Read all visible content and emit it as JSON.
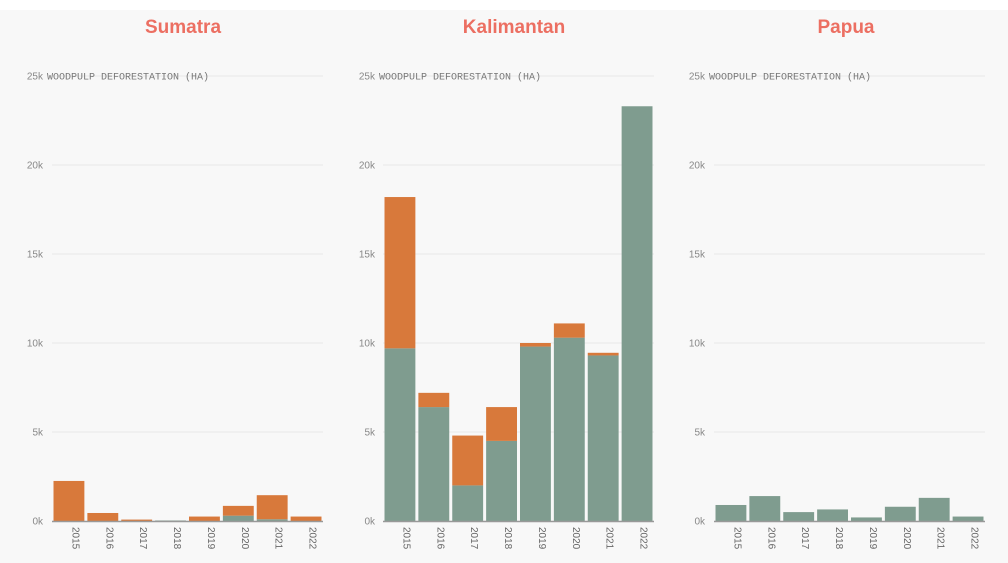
{
  "colors": {
    "title": "#ec6f62",
    "green": "#7f9c8f",
    "orange": "#d8793b",
    "grid": "#e8e8e8",
    "axis": "#999999"
  },
  "chart_data": [
    {
      "type": "bar",
      "stacked": true,
      "title": "Sumatra",
      "ylabel": "WOODPULP DEFORESTATION (HA)",
      "ylim": [
        0,
        25000
      ],
      "yticks": [
        0,
        5000,
        10000,
        15000,
        20000,
        25000
      ],
      "ytick_labels": [
        "0k",
        "5k",
        "10k",
        "15k",
        "20k",
        "25k"
      ],
      "categories": [
        "2015",
        "2016",
        "2017",
        "2018",
        "2019",
        "2020",
        "2021",
        "2022"
      ],
      "series": [
        {
          "color": "#7f9c8f",
          "values": [
            0,
            0,
            0,
            30,
            0,
            300,
            100,
            0
          ]
        },
        {
          "color": "#d8793b",
          "values": [
            2250,
            450,
            80,
            0,
            250,
            550,
            1350,
            250
          ]
        }
      ]
    },
    {
      "type": "bar",
      "stacked": true,
      "title": "Kalimantan",
      "ylabel": "WOODPULP DEFORESTATION (HA)",
      "ylim": [
        0,
        25000
      ],
      "yticks": [
        0,
        5000,
        10000,
        15000,
        20000,
        25000
      ],
      "ytick_labels": [
        "0k",
        "5k",
        "10k",
        "15k",
        "20k",
        "25k"
      ],
      "categories": [
        "2015",
        "2016",
        "2017",
        "2018",
        "2019",
        "2020",
        "2021",
        "2022"
      ],
      "series": [
        {
          "color": "#7f9c8f",
          "values": [
            9700,
            6400,
            2000,
            4500,
            9800,
            10300,
            9300,
            23300
          ]
        },
        {
          "color": "#d8793b",
          "values": [
            8500,
            800,
            2800,
            1900,
            200,
            800,
            150,
            0
          ]
        }
      ]
    },
    {
      "type": "bar",
      "stacked": true,
      "title": "Papua",
      "ylabel": "WOODPULP DEFORESTATION (HA)",
      "ylim": [
        0,
        25000
      ],
      "yticks": [
        0,
        5000,
        10000,
        15000,
        20000,
        25000
      ],
      "ytick_labels": [
        "0k",
        "5k",
        "10k",
        "15k",
        "20k",
        "25k"
      ],
      "categories": [
        "2015",
        "2016",
        "2017",
        "2018",
        "2019",
        "2020",
        "2021",
        "2022"
      ],
      "series": [
        {
          "color": "#7f9c8f",
          "values": [
            900,
            1400,
            500,
            650,
            200,
            800,
            1300,
            250
          ]
        },
        {
          "color": "#d8793b",
          "values": [
            0,
            0,
            0,
            0,
            0,
            0,
            0,
            0
          ]
        }
      ]
    }
  ]
}
